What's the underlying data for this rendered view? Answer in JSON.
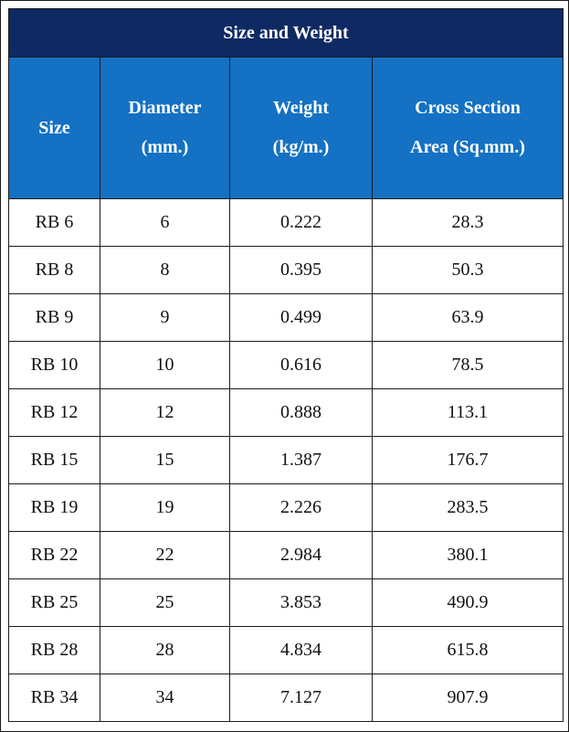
{
  "table": {
    "title": "Size and Weight",
    "headers": [
      [
        "Size"
      ],
      [
        "Diameter",
        "(mm.)"
      ],
      [
        "Weight",
        "(kg/m.)"
      ],
      [
        "Cross Section",
        "Area (Sq.mm.)"
      ]
    ],
    "rows": [
      [
        "RB 6",
        "6",
        "0.222",
        "28.3"
      ],
      [
        "RB 8",
        "8",
        "0.395",
        "50.3"
      ],
      [
        "RB 9",
        "9",
        "0.499",
        "63.9"
      ],
      [
        "RB 10",
        "10",
        "0.616",
        "78.5"
      ],
      [
        "RB 12",
        "12",
        "0.888",
        "113.1"
      ],
      [
        "RB 15",
        "15",
        "1.387",
        "176.7"
      ],
      [
        "RB 19",
        "19",
        "2.226",
        "283.5"
      ],
      [
        "RB 22",
        "22",
        "2.984",
        "380.1"
      ],
      [
        "RB 25",
        "25",
        "3.853",
        "490.9"
      ],
      [
        "RB 28",
        "28",
        "4.834",
        "615.8"
      ],
      [
        "RB 34",
        "34",
        "7.127",
        "907.9"
      ]
    ]
  },
  "colors": {
    "title_bg": "#0f2a63",
    "header_bg": "#1471c4",
    "header_text": "#ffffff",
    "border": "#1b1b1b"
  }
}
